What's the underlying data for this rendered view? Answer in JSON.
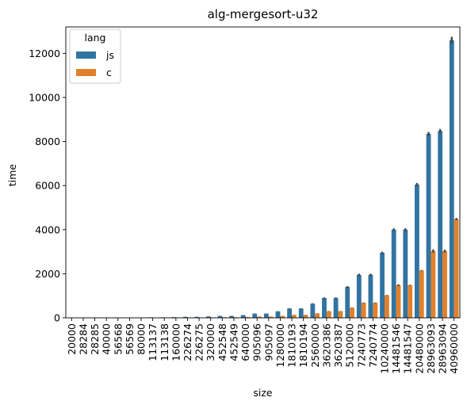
{
  "chart_data": {
    "type": "bar",
    "title": "alg-mergesort-u32",
    "xlabel": "size",
    "ylabel": "time",
    "ylim": [
      0,
      13200
    ],
    "yticks": [
      0,
      2000,
      4000,
      6000,
      8000,
      10000,
      12000
    ],
    "ytick_labels": [
      "0",
      "2000",
      "4000",
      "6000",
      "8000",
      "10000",
      "12000"
    ],
    "grid": false,
    "legend": {
      "title": "lang",
      "placement": "top-left"
    },
    "categories": [
      "20000",
      "28284",
      "28285",
      "40000",
      "56568",
      "56569",
      "80000",
      "113137",
      "113138",
      "160000",
      "226274",
      "226275",
      "320000",
      "452548",
      "452549",
      "640000",
      "905096",
      "905097",
      "1280000",
      "1810193",
      "1810194",
      "2560000",
      "3620386",
      "3620387",
      "5120000",
      "7240773",
      "7240774",
      "10240000",
      "14481546",
      "14481547",
      "20480000",
      "28963093",
      "28963094",
      "40960000"
    ],
    "series": [
      {
        "name": "js",
        "color": "#3274a1",
        "values": [
          4,
          5,
          5,
          7,
          10,
          10,
          14,
          20,
          20,
          30,
          43,
          43,
          60,
          85,
          85,
          120,
          190,
          190,
          290,
          420,
          420,
          640,
          900,
          900,
          1400,
          1950,
          1950,
          2950,
          4000,
          4000,
          6050,
          8350,
          8480,
          12600
        ],
        "errors": [
          1,
          1,
          1,
          1,
          1,
          1,
          1,
          2,
          2,
          2,
          3,
          3,
          4,
          5,
          5,
          6,
          8,
          8,
          12,
          15,
          15,
          20,
          25,
          25,
          40,
          50,
          50,
          50,
          60,
          60,
          70,
          80,
          90,
          150
        ]
      },
      {
        "name": "c",
        "color": "#e1812c",
        "values": [
          1,
          1,
          1,
          2,
          3,
          3,
          4,
          6,
          6,
          8,
          12,
          12,
          18,
          26,
          26,
          36,
          55,
          55,
          85,
          130,
          130,
          200,
          300,
          300,
          460,
          680,
          680,
          1020,
          1480,
          1480,
          2150,
          3030,
          3030,
          4480
        ],
        "errors": [
          0,
          0,
          0,
          0,
          0,
          0,
          1,
          1,
          1,
          1,
          1,
          1,
          2,
          2,
          2,
          3,
          3,
          3,
          4,
          5,
          5,
          6,
          8,
          8,
          10,
          15,
          15,
          15,
          40,
          20,
          20,
          70,
          60,
          50
        ]
      }
    ]
  }
}
